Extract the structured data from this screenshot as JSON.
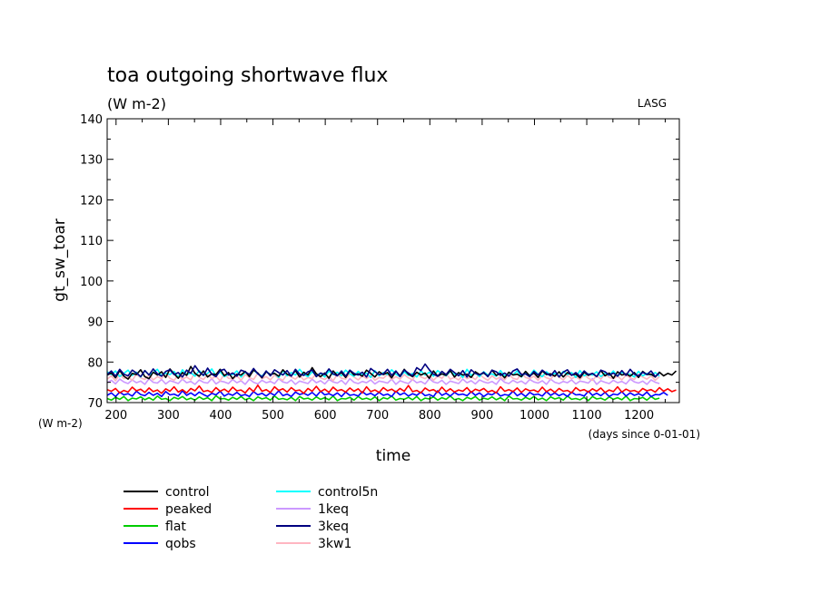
{
  "chart_data": {
    "type": "line",
    "title": "toa outgoing shortwave flux",
    "units": "(W m-2)",
    "watermark": "LASG",
    "xlabel": "time",
    "x_units_note": "(days since 0-01-01)",
    "ylabel": "gt_sw_toar",
    "y_units_note": "(W m-2)",
    "xlim": [
      183,
      1277
    ],
    "ylim": [
      70,
      140
    ],
    "x_ticks": [
      200,
      300,
      400,
      500,
      600,
      700,
      800,
      900,
      1000,
      1100,
      1200
    ],
    "y_ticks": [
      70,
      80,
      90,
      100,
      110,
      120,
      130,
      140
    ],
    "x_sample_step": 8,
    "series": [
      {
        "name": "control",
        "color": "#000000",
        "values": [
          76.8,
          77.3,
          76.1,
          77.9,
          76.5,
          75.8,
          77.2,
          76.9,
          78.1,
          76.4,
          75.9,
          77.5,
          76.8,
          77.6,
          76.2,
          78.3,
          77.1,
          76.0,
          77.4,
          76.7,
          78.9,
          77.2,
          76.5,
          77.8,
          76.3,
          77.1,
          76.9,
          78.2,
          76.6,
          77.4,
          75.9,
          77.0,
          76.8,
          77.7,
          76.4,
          78.0,
          77.3,
          76.1,
          77.6,
          76.9,
          77.2,
          76.5,
          78.1,
          77.0,
          76.6,
          77.9,
          76.3,
          77.5,
          76.8,
          78.6,
          77.1,
          76.4,
          77.3,
          76.0,
          77.8,
          76.7,
          77.4,
          76.2,
          77.9,
          76.8,
          77.1,
          76.5,
          78.0,
          77.2,
          76.3,
          77.6,
          76.9,
          77.4,
          76.1,
          77.7,
          76.6,
          78.2,
          77.0,
          76.4,
          77.5,
          76.8,
          77.3,
          76.0,
          77.8,
          76.5,
          77.1,
          76.7,
          77.9,
          76.3,
          77.4,
          76.8,
          77.0,
          76.2,
          77.6,
          76.9,
          77.3,
          76.5,
          78.0,
          76.7,
          77.2,
          76.1,
          77.5,
          76.8,
          77.0,
          76.4,
          77.7,
          76.6,
          77.3,
          76.2,
          77.8,
          76.9,
          77.1,
          76.5,
          77.6,
          76.3,
          77.4,
          76.8,
          77.0,
          76.1,
          77.5,
          76.7,
          77.2,
          76.4,
          77.9,
          76.6,
          77.3,
          76.0,
          77.6,
          76.8,
          77.1,
          76.5,
          77.4,
          76.2,
          77.7,
          76.9,
          77.0,
          76.3,
          77.5,
          76.6,
          77.2,
          76.8,
          77.8
        ]
      },
      {
        "name": "peaked",
        "color": "#ff0000",
        "values": [
          73.2,
          72.8,
          73.5,
          72.4,
          73.0,
          72.6,
          73.8,
          72.9,
          73.3,
          72.5,
          73.6,
          72.7,
          73.1,
          72.3,
          73.4,
          72.8,
          73.9,
          72.6,
          73.2,
          72.4,
          73.5,
          72.9,
          74.1,
          72.7,
          73.0,
          72.5,
          73.7,
          72.8,
          73.3,
          72.6,
          73.8,
          72.9,
          73.1,
          72.4,
          73.6,
          72.7,
          74.3,
          72.8,
          73.2,
          72.5,
          73.9,
          73.0,
          73.4,
          72.6,
          73.7,
          72.9,
          73.1,
          72.3,
          73.5,
          72.8,
          74.0,
          72.7,
          73.3,
          72.5,
          73.8,
          72.9,
          73.2,
          72.6,
          73.6,
          72.8,
          73.4,
          72.4,
          73.9,
          72.7,
          73.1,
          72.5,
          73.7,
          72.9,
          73.3,
          72.6,
          73.5,
          72.8,
          74.2,
          72.7,
          73.0,
          72.4,
          73.6,
          72.9,
          73.2,
          72.5,
          73.8,
          72.7,
          73.4,
          72.6,
          73.1,
          72.8,
          73.7,
          72.5,
          73.3,
          72.9,
          73.5,
          72.6,
          73.0,
          72.4,
          73.9,
          72.8,
          73.2,
          72.7,
          73.6,
          72.5,
          73.4,
          72.9,
          73.1,
          72.6,
          73.8,
          72.7,
          73.3,
          72.5,
          73.5,
          72.8,
          73.0,
          72.4,
          73.7,
          72.9,
          73.2,
          72.6,
          73.4,
          72.8,
          73.6,
          72.5,
          73.1,
          72.7,
          73.9,
          72.6,
          73.3,
          72.8,
          73.0,
          72.5,
          73.5,
          72.9,
          73.2,
          72.6,
          73.7,
          72.8,
          73.4,
          72.7,
          73.1
        ]
      },
      {
        "name": "flat",
        "color": "#00cc00",
        "values": [
          71.0,
          70.6,
          71.3,
          70.8,
          71.5,
          70.5,
          71.1,
          70.9,
          71.4,
          70.7,
          71.2,
          70.6,
          71.6,
          70.8,
          71.0,
          70.5,
          71.3,
          70.9,
          71.5,
          70.7,
          71.1,
          70.6,
          71.4,
          70.8,
          71.2,
          70.5,
          71.7,
          70.9,
          71.0,
          70.6,
          71.3,
          70.8,
          71.5,
          70.7,
          71.1,
          70.5,
          71.4,
          70.9,
          71.2,
          70.6,
          71.6,
          70.8,
          71.0,
          70.7,
          71.3,
          70.5,
          71.5,
          70.9,
          71.1,
          70.6,
          71.4,
          70.8,
          71.2,
          70.7,
          71.6,
          70.5,
          71.0,
          70.9,
          71.3,
          70.6,
          71.5,
          70.8,
          71.1,
          70.7,
          71.4,
          70.5,
          71.2,
          70.9,
          71.6,
          70.6,
          71.0,
          70.8,
          71.3,
          70.7,
          71.5,
          70.5,
          71.1,
          70.9,
          71.4,
          70.6,
          71.2,
          70.8,
          71.6,
          70.7,
          71.0,
          70.5,
          71.3,
          70.9,
          71.5,
          70.6,
          71.1,
          70.8,
          71.4,
          70.7,
          71.2,
          70.5,
          71.6,
          70.9,
          71.0,
          70.6,
          71.3,
          70.8,
          71.5,
          70.7,
          71.1,
          70.5,
          71.4,
          70.9,
          71.2,
          70.6,
          71.6,
          70.8,
          71.0,
          70.7,
          71.3,
          70.5,
          71.5,
          70.9,
          71.1,
          70.6,
          71.4,
          70.8,
          71.2,
          70.7,
          71.6,
          70.5,
          71.0,
          70.9,
          71.3,
          70.6,
          71.5,
          70.8,
          71.1
        ]
      },
      {
        "name": "qobs",
        "color": "#0000ff",
        "values": [
          71.8,
          72.4,
          71.5,
          72.6,
          71.9,
          72.2,
          71.6,
          72.8,
          72.0,
          71.7,
          72.5,
          71.8,
          72.3,
          71.5,
          72.7,
          71.9,
          72.1,
          71.6,
          72.9,
          71.8,
          72.4,
          71.7,
          72.6,
          72.0,
          71.5,
          72.3,
          71.9,
          72.8,
          71.6,
          72.2,
          71.8,
          72.5,
          71.7,
          72.0,
          71.5,
          72.7,
          71.9,
          72.3,
          71.6,
          72.4,
          71.8,
          72.9,
          71.7,
          72.1,
          71.5,
          72.6,
          72.0,
          72.3,
          71.8,
          72.5,
          71.6,
          72.8,
          71.9,
          72.2,
          71.7,
          72.4,
          71.5,
          72.6,
          71.8,
          72.0,
          71.6,
          72.7,
          71.9,
          72.3,
          71.7,
          72.5,
          71.8,
          72.1,
          71.5,
          72.8,
          71.9,
          72.4,
          71.6,
          72.2,
          71.8,
          72.6,
          71.7,
          72.0,
          71.5,
          72.9,
          71.8,
          72.3,
          71.6,
          72.5,
          71.9,
          72.1,
          71.7,
          72.7,
          71.8,
          72.4,
          71.5,
          72.2,
          71.9,
          72.6,
          71.6,
          72.0,
          71.8,
          72.8,
          71.7,
          72.3,
          71.5,
          72.5,
          71.9,
          72.1,
          71.6,
          72.7,
          71.8,
          72.4,
          71.7,
          72.2,
          71.5,
          72.6,
          71.9,
          72.0,
          71.6,
          72.8,
          71.8,
          72.3,
          71.7,
          72.5,
          71.5,
          72.1,
          71.9,
          72.7,
          71.6,
          72.4,
          71.8,
          72.2,
          71.7,
          72.6,
          71.5,
          72.0,
          71.9,
          72.5,
          71.8
        ]
      },
      {
        "name": "control5n",
        "color": "#00ffff",
        "values": [
          77.6,
          76.9,
          77.8,
          76.4,
          77.2,
          78.0,
          76.7,
          77.5,
          76.3,
          77.9,
          76.8,
          77.4,
          78.2,
          76.6,
          77.3,
          76.9,
          77.7,
          76.2,
          78.1,
          76.8,
          77.4,
          76.5,
          77.9,
          76.7,
          77.2,
          78.3,
          76.6,
          77.6,
          76.4,
          77.0,
          76.9,
          77.8,
          76.3,
          77.5,
          76.8,
          78.0,
          77.1,
          76.5,
          77.7,
          76.9,
          77.3,
          76.2,
          77.9,
          76.6,
          77.4,
          76.8,
          78.2,
          77.0,
          76.4,
          77.6,
          76.7,
          77.2,
          76.3,
          77.8,
          76.9,
          77.5,
          76.6,
          78.0,
          77.1,
          76.5,
          77.7,
          76.8,
          77.3,
          76.2,
          77.9,
          76.6,
          77.4,
          76.9,
          78.1,
          77.0,
          76.4,
          77.6,
          76.7,
          77.2,
          76.3,
          77.8,
          76.8,
          77.5,
          76.5,
          77.9,
          77.1,
          76.6,
          77.7,
          76.9,
          77.3,
          76.2,
          78.2,
          76.7,
          77.4,
          76.4,
          77.6,
          76.8,
          77.1,
          76.5,
          77.9,
          76.6,
          77.3,
          76.9,
          77.8,
          76.3,
          77.5,
          76.7,
          78.0,
          77.0,
          76.4,
          77.6,
          76.8,
          77.2,
          76.5,
          77.7,
          76.9,
          77.4,
          76.2,
          77.9,
          76.6,
          77.1,
          76.8,
          77.6,
          76.4,
          77.3,
          76.7,
          77.8,
          76.5,
          77.5,
          76.9,
          77.0,
          76.3,
          77.7,
          76.6,
          77.2,
          76.8,
          77.4,
          76.5
        ]
      },
      {
        "name": "1keq",
        "color": "#cc99ff",
        "values": [
          74.9,
          75.5,
          74.6,
          75.8,
          75.1,
          74.7,
          75.6,
          74.9,
          75.3,
          74.5,
          75.9,
          75.0,
          74.8,
          75.7,
          74.6,
          75.4,
          75.1,
          74.7,
          75.8,
          74.9,
          75.2,
          74.5,
          75.6,
          75.0,
          74.8,
          75.9,
          74.6,
          75.3,
          75.1,
          74.7,
          75.7,
          74.9,
          75.4,
          74.5,
          75.8,
          75.0,
          74.6,
          75.5,
          74.9,
          75.2,
          74.7,
          75.9,
          75.1,
          74.8,
          75.6,
          74.5,
          75.3,
          75.0,
          74.7,
          75.8,
          74.9,
          75.4,
          74.6,
          75.7,
          75.1,
          74.8,
          75.5,
          74.5,
          75.9,
          75.0,
          74.7,
          75.2,
          74.9,
          75.6,
          74.6,
          75.3,
          75.1,
          74.8,
          75.8,
          74.5,
          75.4,
          75.0,
          74.7,
          75.7,
          74.9,
          75.2,
          74.6,
          75.9,
          75.1,
          74.8,
          75.5,
          74.5,
          75.3,
          75.0,
          74.7,
          75.8,
          74.9,
          75.4,
          74.6,
          75.6,
          75.1,
          74.8,
          75.2,
          74.5,
          75.9,
          75.0,
          74.7,
          75.5,
          74.9,
          75.3,
          74.6,
          75.7,
          75.1,
          74.8,
          75.4,
          74.5,
          75.8,
          75.0,
          74.7,
          75.2,
          74.9,
          75.6,
          74.6,
          75.3,
          75.1,
          74.8,
          75.9,
          74.5,
          75.4,
          75.0,
          74.7,
          75.5,
          74.9,
          75.2,
          74.6,
          75.8,
          75.1,
          74.8,
          75.3,
          74.5,
          75.6,
          75.0,
          74.7
        ]
      },
      {
        "name": "3keq",
        "color": "#000080",
        "values": [
          76.9,
          77.8,
          76.5,
          78.2,
          77.0,
          76.6,
          78.0,
          77.3,
          76.4,
          77.9,
          76.8,
          78.3,
          77.1,
          76.5,
          77.7,
          78.1,
          76.9,
          77.4,
          76.3,
          78.0,
          77.2,
          79.1,
          77.6,
          76.7,
          78.5,
          77.0,
          76.4,
          77.9,
          78.2,
          76.8,
          77.3,
          76.5,
          78.0,
          77.6,
          76.9,
          78.4,
          77.1,
          76.3,
          77.8,
          76.6,
          78.1,
          77.4,
          76.8,
          77.9,
          76.5,
          78.2,
          77.0,
          76.7,
          77.6,
          78.0,
          76.4,
          77.3,
          76.9,
          78.3,
          77.1,
          76.6,
          77.8,
          76.5,
          78.0,
          77.2,
          76.8,
          77.5,
          76.3,
          78.4,
          77.6,
          76.9,
          77.1,
          78.2,
          76.7,
          77.8,
          76.4,
          78.0,
          77.3,
          76.6,
          78.6,
          77.9,
          79.5,
          78.1,
          77.0,
          76.5,
          77.7,
          76.9,
          78.2,
          77.4,
          76.6,
          77.9,
          76.3,
          78.1,
          77.2,
          76.8,
          77.5,
          76.4,
          78.0,
          77.6,
          76.7,
          77.3,
          76.5,
          77.8,
          78.3,
          76.9,
          77.1,
          76.4,
          77.7,
          76.8,
          78.0,
          77.2,
          76.6,
          77.9,
          76.3,
          77.5,
          78.1,
          76.7,
          77.4,
          76.5,
          77.8,
          76.9,
          77.2,
          76.4,
          78.0,
          77.6,
          76.8,
          77.3,
          76.5,
          77.9,
          76.7,
          78.2,
          77.0,
          76.6,
          77.5,
          76.9,
          77.8,
          76.4,
          77.3
        ]
      },
      {
        "name": "3kw1",
        "color": "#ffb6c1",
        "values": [
          75.8,
          76.6,
          75.4,
          76.9,
          75.9,
          76.3,
          75.5,
          77.0,
          76.1,
          75.7,
          76.8,
          75.6,
          76.4,
          75.9,
          77.2,
          76.0,
          75.5,
          76.7,
          75.8,
          76.3,
          75.6,
          77.4,
          76.2,
          75.7,
          76.9,
          75.9,
          76.5,
          75.4,
          77.1,
          76.0,
          75.8,
          76.6,
          75.5,
          76.9,
          76.2,
          75.7,
          77.3,
          75.9,
          76.4,
          75.6,
          76.8,
          76.0,
          75.5,
          77.0,
          76.3,
          75.8,
          76.7,
          75.6,
          76.2,
          75.9,
          77.2,
          76.1,
          75.7,
          76.5,
          75.4,
          76.9,
          76.0,
          75.8,
          77.1,
          76.3,
          75.6,
          76.6,
          75.9,
          76.8,
          75.5,
          76.2,
          76.0,
          77.0,
          75.7,
          76.4,
          75.8,
          76.9,
          76.1,
          75.6,
          77.3,
          76.3,
          75.9,
          76.7,
          75.5,
          76.5,
          76.0,
          77.1,
          75.8,
          76.2,
          75.6,
          76.8,
          75.9,
          76.4,
          75.7,
          77.0,
          76.1,
          75.5,
          76.6,
          75.8,
          76.3,
          75.6,
          76.9,
          76.0,
          75.7,
          77.2,
          76.2,
          75.9,
          76.5,
          75.5,
          76.8,
          76.1,
          75.8,
          77.0,
          76.3,
          75.6,
          76.7,
          75.9,
          76.4,
          75.7,
          76.9,
          76.0,
          75.5,
          76.6,
          75.8,
          77.1,
          76.2,
          75.9,
          76.5,
          75.6,
          76.8,
          76.1,
          75.7,
          77.0,
          76.3,
          75.8,
          76.6,
          75.5,
          76.4
        ]
      }
    ]
  }
}
